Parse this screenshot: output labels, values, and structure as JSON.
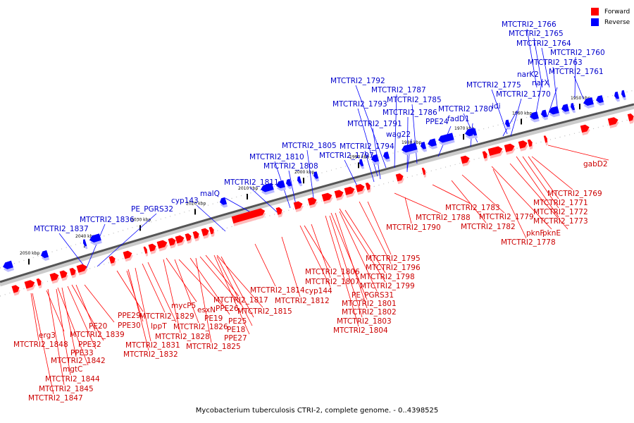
{
  "caption": "Mycobacterium tuberculosis CTRI-2, complete genome. - 0..4398525",
  "colors": {
    "forward": "#ff0000",
    "reverse": "#0000ff",
    "forward_label": "#cc0000",
    "reverse_label": "#0000cc"
  },
  "legend": [
    {
      "label": "Forward",
      "color": "#ff0000"
    },
    {
      "label": "Reverse",
      "color": "#0000ff"
    }
  ],
  "ticks": [
    "1950 kbp",
    "1960 kbp",
    "1970 kbp",
    "1980 kbp",
    "1990 kbp",
    "2000 kbp",
    "2010 kbp",
    "2020 kbp",
    "2030 kbp",
    "2040 kbp",
    "2050 kbp"
  ],
  "reverse_labels": [
    "MTCTRI2_1766",
    "MTCTRI2_1765",
    "MTCTRI2_1764",
    "MTCTRI2_1760",
    "MTCTRI2_1763",
    "narK2",
    "narX",
    "MTCTRI2_1761",
    "MTCTRI2_1775",
    "MTCTRI2_1770",
    "idi",
    "MTCTRI2_1780",
    "fadD1",
    "MTCTRI2_1792",
    "MTCTRI2_1787",
    "MTCTRI2_1785",
    "MTCTRI2_1793",
    "MTCTRI2_1786",
    "PPE24",
    "MTCTRI2_1791",
    "wag22",
    "MTCTRI2_1794",
    "MTCTRI2_1797",
    "MTCTRI2_1805",
    "MTCTRI2_1810",
    "MTCTRI2_1808",
    "MTCTRI2_1811",
    "malQ",
    "cyp143",
    "PE_PGRS32",
    "MTCTRI2_1836",
    "MTCTRI2_1837"
  ],
  "forward_labels": [
    "gabD2",
    "MTCTRI2_1769",
    "MTCTRI2_1771",
    "MTCTRI2_1772",
    "MTCTRI2_1773",
    "MTCTRI2_1783",
    "MTCTRI2_1779",
    "pknF",
    "pknE",
    "MTCTRI2_1788",
    "MTCTRI2_1782",
    "MTCTRI2_1778",
    "MTCTRI2_1790",
    "MTCTRI2_1795",
    "MTCTRI2_1796",
    "MTCTRI2_1806",
    "MTCTRI2_1798",
    "MTCTRI2_1807",
    "MTCTRI2_1799",
    "MTCTRI2_1814",
    "cyp144",
    "PE_PGRS31",
    "MTCTRI2_1801",
    "MTCTRI2_1812",
    "MTCTRI2_1817",
    "MTCTRI2_1802",
    "mycP5",
    "PPE26",
    "MTCTRI2_1815",
    "MTCTRI2_1803",
    "esxN",
    "PE25",
    "MTCTRI2_1829",
    "PPE29",
    "PE19",
    "MTCTRI2_1804",
    "PPE30",
    "lppT",
    "MTCTRI2_1826",
    "PE18",
    "MTCTRI2_1828",
    "PPE27",
    "MTCTRI2_1825",
    "PE20",
    "MTCTRI2_1839",
    "MTCTRI2_1831",
    "erg3",
    "PPE32",
    "MTCTRI2_1848",
    "MTCTRI2_1832",
    "PPE33",
    "MTCTRI2_1842",
    "mgtC",
    "MTCTRI2_1844",
    "MTCTRI2_1845",
    "MTCTRI2_1847"
  ]
}
